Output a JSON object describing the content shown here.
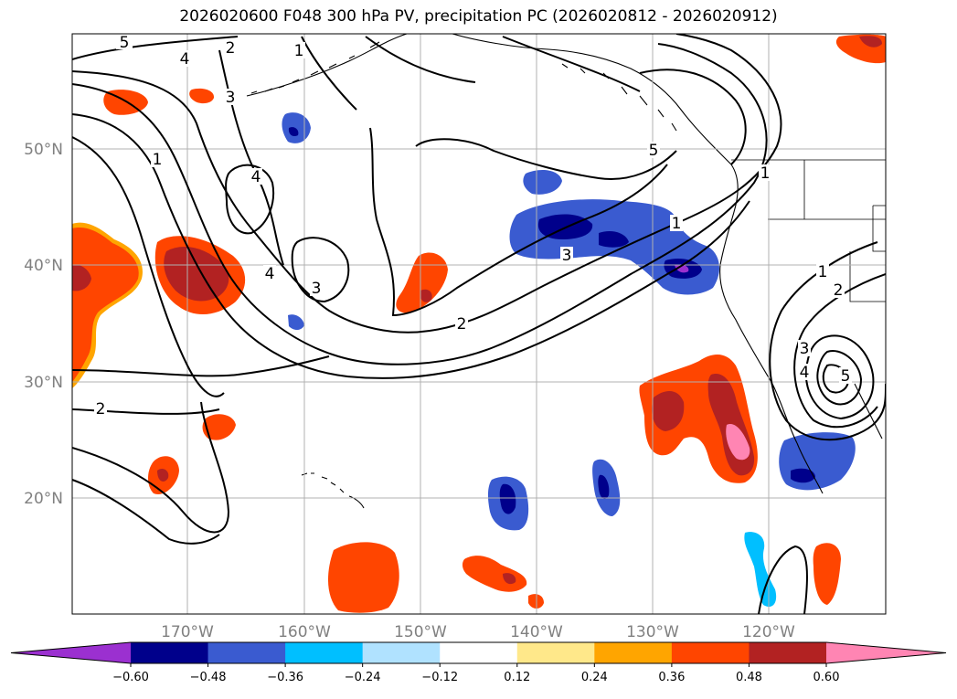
{
  "title": "2026020600 F048 300 hPa PV, precipitation PC (2026020812 - 2026020912)",
  "latitude_labels": [
    "50°N",
    "40°N",
    "30°N",
    "20°N"
  ],
  "longitude_labels": [
    "170°W",
    "160°W",
    "150°W",
    "140°W",
    "130°W",
    "120°W"
  ],
  "colorbar": {
    "tick_labels": [
      "−0.60",
      "−0.48",
      "−0.36",
      "−0.24",
      "−0.12",
      "0.12",
      "0.24",
      "0.36",
      "0.48",
      "0.60"
    ],
    "colors": [
      "#9b30d0",
      "#00008b",
      "#3a5bd0",
      "#00bfff",
      "#b0e2ff",
      "#ffffff",
      "#ffe88a",
      "#ffa500",
      "#ff4500",
      "#b22222",
      "#ff85b3"
    ]
  },
  "contour_labels": [
    "5",
    "4",
    "2",
    "1",
    "3",
    "1",
    "4",
    "3",
    "4",
    "3",
    "2",
    "1",
    "5",
    "1",
    "1",
    "2",
    "3",
    "4",
    "5",
    "2"
  ],
  "colors": {
    "grid": "#b0b0b0",
    "coast": "#000000",
    "contour": "#000000"
  }
}
